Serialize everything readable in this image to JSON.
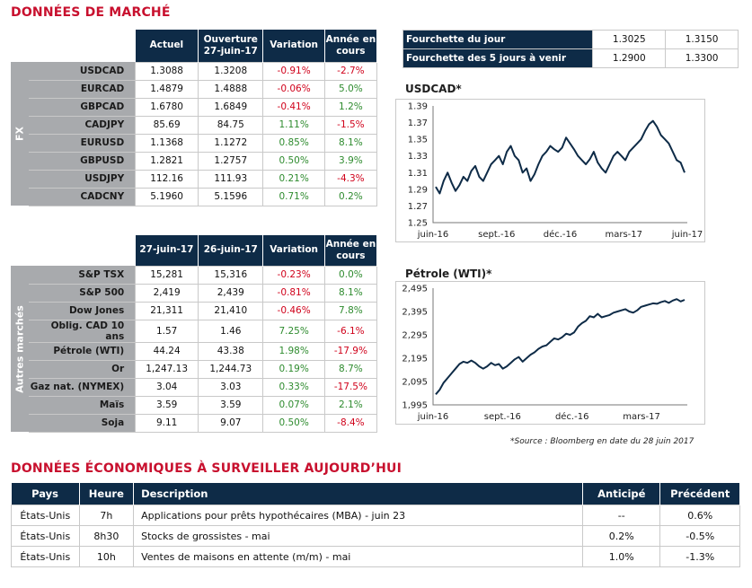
{
  "market": {
    "title": "DONNÉES DE MARCHÉ",
    "fx": {
      "side_label": "FX",
      "headers": [
        "Actuel",
        "Ouverture 27-juin-17",
        "Variation",
        "Année en cours"
      ],
      "rows": [
        {
          "name": "USDCAD",
          "actuel": "1.3088",
          "ouverture": "1.3208",
          "variation": "-0.91%",
          "annee": "-2.7%"
        },
        {
          "name": "EURCAD",
          "actuel": "1.4879",
          "ouverture": "1.4888",
          "variation": "-0.06%",
          "annee": "5.0%"
        },
        {
          "name": "GBPCAD",
          "actuel": "1.6780",
          "ouverture": "1.6849",
          "variation": "-0.41%",
          "annee": "1.2%"
        },
        {
          "name": "CADJPY",
          "actuel": "85.69",
          "ouverture": "84.75",
          "variation": "1.11%",
          "annee": "-1.5%"
        },
        {
          "name": "EURUSD",
          "actuel": "1.1368",
          "ouverture": "1.1272",
          "variation": "0.85%",
          "annee": "8.1%"
        },
        {
          "name": "GBPUSD",
          "actuel": "1.2821",
          "ouverture": "1.2757",
          "variation": "0.50%",
          "annee": "3.9%"
        },
        {
          "name": "USDJPY",
          "actuel": "112.16",
          "ouverture": "111.93",
          "variation": "0.21%",
          "annee": "-4.3%"
        },
        {
          "name": "CADCNY",
          "actuel": "5.1960",
          "ouverture": "5.1596",
          "variation": "0.71%",
          "annee": "0.2%"
        }
      ]
    },
    "autres": {
      "side_label": "Autres marchés",
      "headers": [
        "27-juin-17",
        "26-juin-17",
        "Variation",
        "Année en cours"
      ],
      "rows": [
        {
          "name": "S&P TSX",
          "actuel": "15,281",
          "ouverture": "15,316",
          "variation": "-0.23%",
          "annee": "0.0%"
        },
        {
          "name": "S&P 500",
          "actuel": "2,419",
          "ouverture": "2,439",
          "variation": "-0.81%",
          "annee": "8.1%"
        },
        {
          "name": "Dow Jones",
          "actuel": "21,311",
          "ouverture": "21,410",
          "variation": "-0.46%",
          "annee": "7.8%"
        },
        {
          "name": "Oblig. CAD 10 ans",
          "actuel": "1.57",
          "ouverture": "1.46",
          "variation": "7.25%",
          "annee": "-6.1%"
        },
        {
          "name": "Pétrole (WTI)",
          "actuel": "44.24",
          "ouverture": "43.38",
          "variation": "1.98%",
          "annee": "-17.9%"
        },
        {
          "name": "Or",
          "actuel": "1,247.13",
          "ouverture": "1,244.73",
          "variation": "0.19%",
          "annee": "8.7%"
        },
        {
          "name": "Gaz nat. (NYMEX)",
          "actuel": "3.04",
          "ouverture": "3.03",
          "variation": "0.33%",
          "annee": "-17.5%"
        },
        {
          "name": "Maïs",
          "actuel": "3.59",
          "ouverture": "3.59",
          "variation": "0.07%",
          "annee": "2.1%"
        },
        {
          "name": "Soja",
          "actuel": "9.11",
          "ouverture": "9.07",
          "variation": "0.50%",
          "annee": "-8.4%"
        }
      ]
    },
    "ranges": [
      {
        "label": "Fourchette du jour",
        "low": "1.3025",
        "high": "1.3150"
      },
      {
        "label": "Fourchette des 5 jours à venir",
        "low": "1.2900",
        "high": "1.3300"
      }
    ],
    "source": "*Source : Bloomberg en date du  28 juin 2017",
    "colors": {
      "header": "#0e2b47",
      "side": "#a8aaad",
      "title": "#c8102e",
      "positive": "#2e8b2e",
      "negative": "#d0021b"
    }
  },
  "chart_data": [
    {
      "type": "line",
      "title": "USDCAD*",
      "x_ticks": [
        "juin-16",
        "sept.-16",
        "déc.-16",
        "mars-17",
        "juin-17"
      ],
      "y_ticks": [
        "1.39",
        "1.37",
        "1.35",
        "1.33",
        "1.31",
        "1.29",
        "1.27",
        "1.25"
      ],
      "ylim": [
        1.25,
        1.39
      ],
      "series": [
        {
          "values": [
            1.293,
            1.285,
            1.3,
            1.31,
            1.298,
            1.288,
            1.295,
            1.305,
            1.3,
            1.312,
            1.318,
            1.305,
            1.3,
            1.31,
            1.32,
            1.325,
            1.33,
            1.32,
            1.335,
            1.342,
            1.33,
            1.325,
            1.31,
            1.315,
            1.3,
            1.308,
            1.32,
            1.33,
            1.335,
            1.342,
            1.338,
            1.335,
            1.34,
            1.352,
            1.345,
            1.338,
            1.33,
            1.325,
            1.32,
            1.326,
            1.335,
            1.322,
            1.315,
            1.31,
            1.32,
            1.33,
            1.335,
            1.33,
            1.325,
            1.335,
            1.34,
            1.345,
            1.35,
            1.36,
            1.368,
            1.372,
            1.365,
            1.355,
            1.35,
            1.345,
            1.335,
            1.325,
            1.322,
            1.31
          ]
        }
      ]
    },
    {
      "type": "line",
      "title": "Pétrole (WTI)*",
      "x_ticks": [
        "juin-16",
        "sept.-16",
        "déc.-16",
        "mars-17"
      ],
      "y_ticks": [
        "2,495",
        "2,395",
        "2,295",
        "2,195",
        "2,095",
        "1,995"
      ],
      "ylim": [
        1995,
        2495
      ],
      "series": [
        {
          "values": [
            2040,
            2060,
            2090,
            2110,
            2130,
            2150,
            2170,
            2180,
            2175,
            2185,
            2175,
            2160,
            2150,
            2160,
            2175,
            2165,
            2170,
            2150,
            2160,
            2175,
            2190,
            2200,
            2180,
            2195,
            2210,
            2220,
            2235,
            2245,
            2250,
            2265,
            2280,
            2275,
            2285,
            2300,
            2295,
            2305,
            2330,
            2345,
            2355,
            2375,
            2370,
            2385,
            2370,
            2375,
            2380,
            2390,
            2395,
            2400,
            2405,
            2395,
            2390,
            2400,
            2415,
            2420,
            2425,
            2430,
            2428,
            2435,
            2440,
            2432,
            2442,
            2448,
            2438,
            2445
          ]
        }
      ]
    }
  ],
  "eco": {
    "title": "DONNÉES ÉCONOMIQUES À SURVEILLER AUJOURD’HUI",
    "headers": [
      "Pays",
      "Heure",
      "Description",
      "Anticipé",
      "Précédent"
    ],
    "rows": [
      {
        "pays": "États-Unis",
        "heure": "7h",
        "desc": "Applications pour prêts hypothécaires (MBA) - juin 23",
        "anticipe": "--",
        "precedent": "0.6%"
      },
      {
        "pays": "États-Unis",
        "heure": "8h30",
        "desc": "Stocks de grossistes - mai",
        "anticipe": "0.2%",
        "precedent": "-0.5%"
      },
      {
        "pays": "États-Unis",
        "heure": "10h",
        "desc": "Ventes de maisons en attente (m/m) - mai",
        "anticipe": "1.0%",
        "precedent": "-1.3%"
      }
    ]
  }
}
